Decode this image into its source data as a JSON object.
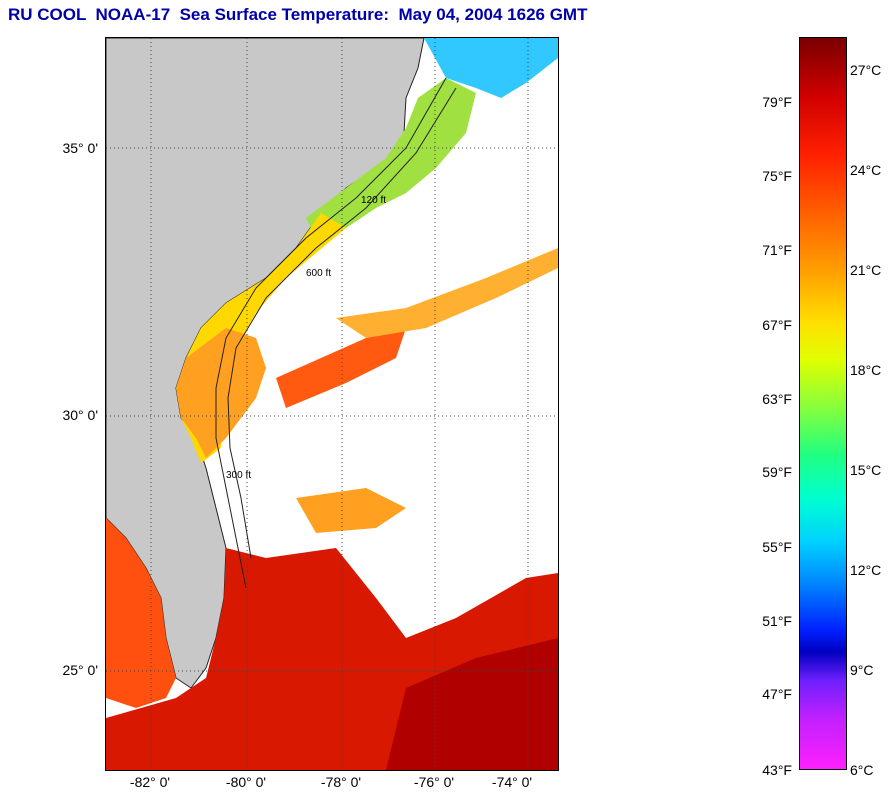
{
  "title": "RU COOL  NOAA-17  Sea Surface Temperature:  May 04, 2004 1626 GMT",
  "map": {
    "lat_labels": [
      "35° 0'",
      "30° 0'",
      "25° 0'"
    ],
    "lon_labels": [
      "-82° 0'",
      "-80° 0'",
      "-78° 0'",
      "-76° 0'",
      "-74° 0'"
    ],
    "contour_labels": [
      "120 ft",
      "600 ft",
      "300 ft"
    ],
    "colors": {
      "land": "#c8c8c8",
      "cloud": "#ffffff",
      "gulf_stream": "#e02000",
      "shelf": "#ffd000"
    }
  },
  "colorbar": {
    "fahrenheit": [
      "79°F",
      "75°F",
      "71°F",
      "67°F",
      "63°F",
      "59°F",
      "55°F",
      "51°F",
      "47°F",
      "43°F"
    ],
    "celsius": [
      "27°C",
      "24°C",
      "21°C",
      "18°C",
      "15°C",
      "12°C",
      "9°C",
      "6°C"
    ]
  }
}
